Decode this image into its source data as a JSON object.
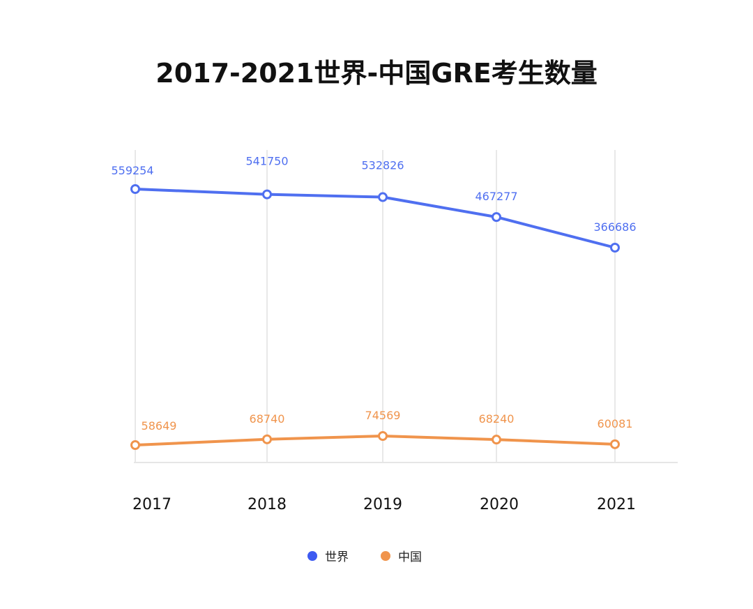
{
  "chart_data": {
    "type": "line",
    "title": "2017-2021世界-中国GRE考生数量",
    "xlabel": "",
    "ylabel": "",
    "categories": [
      "2017",
      "2018",
      "2019",
      "2020",
      "2021"
    ],
    "series": [
      {
        "name": "世界",
        "color": "#4f6ff0",
        "values": [
          559254,
          541750,
          532826,
          467277,
          366686
        ]
      },
      {
        "name": "中国",
        "color": "#f0944c",
        "values": [
          58649,
          68740,
          74569,
          68240,
          60081
        ]
      }
    ],
    "grid": "vertical",
    "legend": "bottom-center"
  }
}
